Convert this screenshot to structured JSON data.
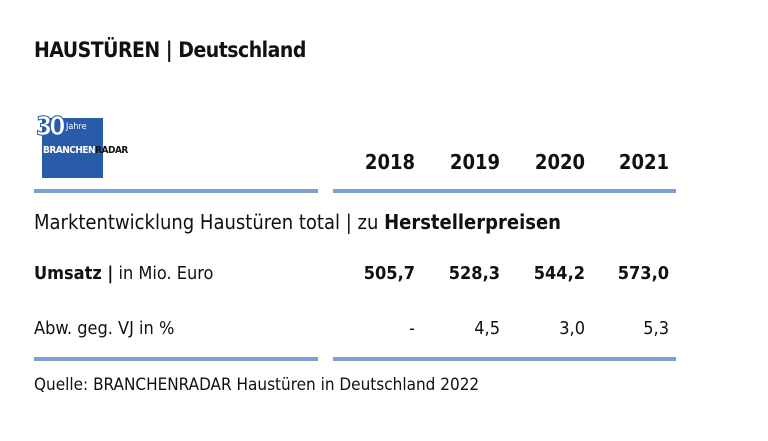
{
  "title": "HAUSTÜREN | Deutschland",
  "logo": {
    "number": "30",
    "jahre": "Jahre",
    "brand_a": "BRANCHEN",
    "brand_b": "RADAR",
    "color": "#2a5ba8"
  },
  "accent": "#7aa0d4",
  "chart_data": {
    "type": "table",
    "section_title": "Marktentwicklung Haustüren total | zu ",
    "section_title_bold": "Herstellerpreisen",
    "columns": [
      "2018",
      "2019",
      "2020",
      "2021"
    ],
    "rows": [
      {
        "label_bold": "Umsatz |",
        "label": " in Mio. Euro",
        "values": [
          "505,7",
          "528,3",
          "544,2",
          "573,0"
        ]
      },
      {
        "label_bold": "",
        "label": "Abw. geg. VJ in %",
        "values": [
          "-",
          "4,5",
          "3,0",
          "5,3"
        ]
      }
    ],
    "source": "Quelle: BRANCHENRADAR Haustüren in Deutschland 2022"
  }
}
